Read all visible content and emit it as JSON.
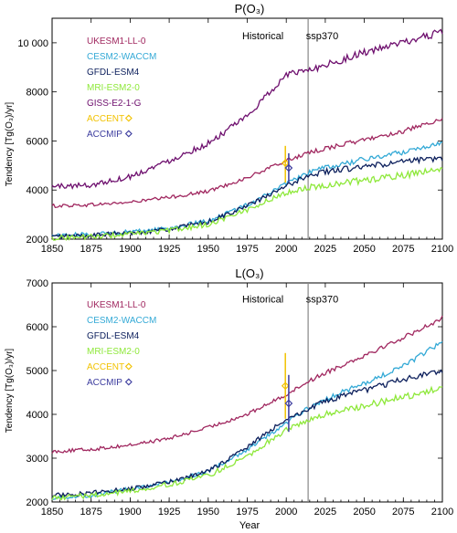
{
  "chart_data": [
    {
      "type": "line",
      "title": "P(O₃)",
      "xlabel": "",
      "ylabel": "Tendency [Tg(O₃)/yr]",
      "xlim": [
        1850,
        2100
      ],
      "ylim": [
        2000,
        11000
      ],
      "xticks": [
        "1850",
        "1875",
        "1900",
        "1925",
        "1950",
        "1975",
        "2000",
        "2025",
        "2050",
        "2075",
        "2100"
      ],
      "yticks": [
        "2000",
        "4000",
        "6000",
        "8000",
        "10 000"
      ],
      "ytick_values": [
        2000,
        4000,
        6000,
        8000,
        10000
      ],
      "divider_year": 2014,
      "annotations": [
        {
          "text": "Historical",
          "x": 1985,
          "y": 10150
        },
        {
          "text": "ssp370",
          "x": 2023,
          "y": 10150
        }
      ],
      "legend_position": "top-left",
      "series": [
        {
          "name": "UKESM1-LL-0",
          "color": "#a0275f",
          "x": [
            1850,
            1875,
            1900,
            1925,
            1950,
            1975,
            2000,
            2014,
            2025,
            2050,
            2075,
            2100
          ],
          "values": [
            3350,
            3400,
            3500,
            3700,
            3950,
            4500,
            5200,
            5500,
            5700,
            6050,
            6400,
            6850
          ]
        },
        {
          "name": "CESM2-WACCM",
          "color": "#33a9d6",
          "x": [
            1850,
            1875,
            1900,
            1925,
            1950,
            1975,
            2000,
            2014,
            2025,
            2050,
            2075,
            2100
          ],
          "values": [
            2150,
            2200,
            2300,
            2450,
            2750,
            3400,
            4250,
            4700,
            4900,
            5250,
            5550,
            5950
          ]
        },
        {
          "name": "GFDL-ESM4",
          "color": "#0c1f5c",
          "x": [
            1850,
            1875,
            1900,
            1925,
            1950,
            1975,
            2000,
            2014,
            2025,
            2050,
            2075,
            2100
          ],
          "values": [
            2100,
            2150,
            2250,
            2400,
            2700,
            3350,
            4150,
            4600,
            4750,
            4950,
            5150,
            5300
          ]
        },
        {
          "name": "MRI-ESM2-0",
          "color": "#8ee83a",
          "x": [
            1850,
            1875,
            1900,
            1925,
            1950,
            1975,
            2000,
            2014,
            2025,
            2050,
            2075,
            2100
          ],
          "values": [
            2050,
            2100,
            2200,
            2350,
            2600,
            3200,
            3900,
            4100,
            4200,
            4400,
            4600,
            4850
          ]
        },
        {
          "name": "GISS-E2-1-G",
          "color": "#6e0f6e",
          "x": [
            1850,
            1875,
            1900,
            1925,
            1950,
            1975,
            2000,
            2014,
            2025,
            2050,
            2075,
            2100
          ],
          "values": [
            4150,
            4200,
            4550,
            5200,
            5900,
            7000,
            8700,
            8900,
            9100,
            9600,
            10000,
            10450
          ]
        }
      ],
      "points": [
        {
          "name": "ACCENT",
          "color": "#f2c200",
          "x": 2000,
          "y": 5100,
          "err": [
            4300,
            5800
          ]
        },
        {
          "name": "ACCMIP",
          "color": "#3b3b9e",
          "x": 2001,
          "y": 4900,
          "err": [
            4300,
            5500
          ]
        }
      ]
    },
    {
      "type": "line",
      "title": "L(O₃)",
      "xlabel": "Year",
      "ylabel": "Tendency [Tg(O₃)/yr]",
      "xlim": [
        1850,
        2100
      ],
      "ylim": [
        2000,
        7000
      ],
      "xticks": [
        "1850",
        "1875",
        "1900",
        "1925",
        "1950",
        "1975",
        "2000",
        "2025",
        "2050",
        "2075",
        "2100"
      ],
      "yticks": [
        "2000",
        "3000",
        "4000",
        "5000",
        "6000",
        "7000"
      ],
      "ytick_values": [
        2000,
        3000,
        4000,
        5000,
        6000,
        7000
      ],
      "divider_year": 2014,
      "annotations": [
        {
          "text": "Historical",
          "x": 1985,
          "y": 6550
        },
        {
          "text": "ssp370",
          "x": 2023,
          "y": 6550
        }
      ],
      "legend_position": "top-left",
      "series": [
        {
          "name": "UKESM1-LL-0",
          "color": "#a0275f",
          "x": [
            1850,
            1875,
            1900,
            1925,
            1950,
            1975,
            2000,
            2014,
            2025,
            2050,
            2075,
            2100
          ],
          "values": [
            3150,
            3200,
            3300,
            3450,
            3700,
            4000,
            4450,
            4750,
            4950,
            5350,
            5750,
            6200
          ]
        },
        {
          "name": "CESM2-WACCM",
          "color": "#33a9d6",
          "x": [
            1850,
            1875,
            1900,
            1925,
            1950,
            1975,
            2000,
            2014,
            2025,
            2050,
            2075,
            2100
          ],
          "values": [
            2100,
            2150,
            2300,
            2450,
            2700,
            3200,
            3800,
            4150,
            4350,
            4700,
            5100,
            5650
          ]
        },
        {
          "name": "GFDL-ESM4",
          "color": "#0c1f5c",
          "x": [
            1850,
            1875,
            1900,
            1925,
            1950,
            1975,
            2000,
            2014,
            2025,
            2050,
            2075,
            2100
          ],
          "values": [
            2150,
            2200,
            2300,
            2450,
            2700,
            3250,
            3900,
            4100,
            4300,
            4550,
            4800,
            5000
          ]
        },
        {
          "name": "MRI-ESM2-0",
          "color": "#8ee83a",
          "x": [
            1850,
            1875,
            1900,
            1925,
            1950,
            1975,
            2000,
            2014,
            2025,
            2050,
            2075,
            2100
          ],
          "values": [
            2100,
            2150,
            2250,
            2400,
            2600,
            3050,
            3650,
            3850,
            4000,
            4200,
            4400,
            4600
          ]
        }
      ],
      "points": [
        {
          "name": "ACCENT",
          "color": "#f2c200",
          "x": 2000,
          "y": 4650,
          "err": [
            3900,
            5400
          ]
        },
        {
          "name": "ACCMIP",
          "color": "#3b3b9e",
          "x": 2001,
          "y": 4250,
          "err": [
            3600,
            4900
          ]
        }
      ]
    }
  ]
}
